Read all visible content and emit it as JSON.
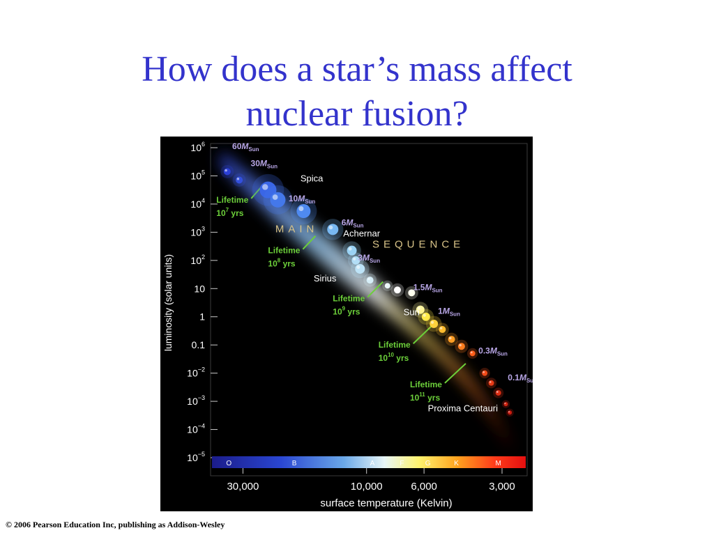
{
  "slide": {
    "title_line1": "How does a star’s mass affect",
    "title_line2": "nuclear fusion?",
    "copyright": "© 2006 Pearson Education Inc, publishing as Addison-Wesley"
  },
  "colors": {
    "title": "#3333cc",
    "lifetime_text": "#6ccf3a",
    "mass_text": "#b8a6e6",
    "sequence_text": "#d9c489",
    "background": "#000000"
  },
  "chart_data": {
    "type": "scatter",
    "xlabel": "surface temperature (Kelvin)",
    "ylabel": "luminosity (solar units)",
    "x_scale": "log-reversed",
    "xlim": [
      40000,
      2400
    ],
    "ylim_log10": [
      -5,
      6
    ],
    "x_ticks": [
      {
        "value": 30000,
        "label": "30,000"
      },
      {
        "value": 10000,
        "label": "10,000"
      },
      {
        "value": 6000,
        "label": "6,000"
      },
      {
        "value": 3000,
        "label": "3,000"
      }
    ],
    "y_ticks": [
      {
        "log": 6,
        "base": "10",
        "exp": "6"
      },
      {
        "log": 5,
        "base": "10",
        "exp": "5"
      },
      {
        "log": 4,
        "base": "10",
        "exp": "4"
      },
      {
        "log": 3,
        "base": "10",
        "exp": "3"
      },
      {
        "log": 2,
        "base": "10",
        "exp": "2"
      },
      {
        "log": 1,
        "base": "10",
        "exp": ""
      },
      {
        "log": 0,
        "base": "1",
        "exp": ""
      },
      {
        "log": -1,
        "base": "0.1",
        "exp": ""
      },
      {
        "log": -2,
        "base": "10",
        "exp": "−2"
      },
      {
        "log": -3,
        "base": "10",
        "exp": "−3"
      },
      {
        "log": -4,
        "base": "10",
        "exp": "−4"
      },
      {
        "log": -5,
        "base": "10",
        "exp": "−5"
      }
    ],
    "spectral_classes": [
      {
        "label": "O",
        "temp": 34000
      },
      {
        "label": "B",
        "temp": 19000
      },
      {
        "label": "A",
        "temp": 9500
      },
      {
        "label": "F",
        "temp": 7300
      },
      {
        "label": "G",
        "temp": 5800
      },
      {
        "label": "K",
        "temp": 4500
      },
      {
        "label": "M",
        "temp": 3100
      }
    ],
    "stars": [
      {
        "temp": 34500,
        "log_lum": 5.15,
        "r": 5,
        "color": "#2b3fd6"
      },
      {
        "temp": 31000,
        "log_lum": 4.85,
        "r": 5,
        "color": "#3350dd"
      },
      {
        "temp": 24000,
        "log_lum": 4.5,
        "r": 12,
        "color": "#3a66e6"
      },
      {
        "temp": 22000,
        "log_lum": 4.15,
        "r": 11,
        "color": "#4478ea"
      },
      {
        "temp": 17500,
        "log_lum": 3.75,
        "r": 10,
        "color": "#4f8af0"
      },
      {
        "temp": 13500,
        "log_lum": 3.1,
        "r": 8,
        "color": "#78b8f2"
      },
      {
        "temp": 11400,
        "log_lum": 2.35,
        "r": 7,
        "color": "#9ad2f4"
      },
      {
        "temp": 11000,
        "log_lum": 2.0,
        "r": 6,
        "color": "#b0dcf6"
      },
      {
        "temp": 10600,
        "log_lum": 1.7,
        "r": 7,
        "color": "#bde3f7"
      },
      {
        "temp": 9700,
        "log_lum": 1.3,
        "r": 5,
        "color": "#d6eef8"
      },
      {
        "temp": 8300,
        "log_lum": 1.1,
        "r": 4,
        "color": "#eaf6f9"
      },
      {
        "temp": 7600,
        "log_lum": 0.95,
        "r": 5,
        "color": "#ffffff"
      },
      {
        "temp": 6700,
        "log_lum": 0.85,
        "r": 5,
        "color": "#ffffee"
      },
      {
        "temp": 6200,
        "log_lum": 0.25,
        "r": 6,
        "color": "#fff6a0"
      },
      {
        "temp": 5900,
        "log_lum": 0.0,
        "r": 6,
        "color": "#ffea4a"
      },
      {
        "temp": 5500,
        "log_lum": -0.25,
        "r": 6,
        "color": "#ffd23c"
      },
      {
        "temp": 5100,
        "log_lum": -0.45,
        "r": 5,
        "color": "#ffbc2e"
      },
      {
        "temp": 4700,
        "log_lum": -0.8,
        "r": 5,
        "color": "#ff9d24"
      },
      {
        "temp": 4300,
        "log_lum": -1.05,
        "r": 5,
        "color": "#ff7d1e"
      },
      {
        "temp": 3900,
        "log_lum": -1.3,
        "r": 4,
        "color": "#ff5e1a"
      },
      {
        "temp": 3500,
        "log_lum": -2.0,
        "r": 4,
        "color": "#f24a18"
      },
      {
        "temp": 3300,
        "log_lum": -2.35,
        "r": 4,
        "color": "#e63a16"
      },
      {
        "temp": 3100,
        "log_lum": -2.7,
        "r": 4,
        "color": "#dd2e14"
      },
      {
        "temp": 2900,
        "log_lum": -3.1,
        "r": 3,
        "color": "#d22412"
      },
      {
        "temp": 2800,
        "log_lum": -3.4,
        "r": 3,
        "color": "#c81c10"
      }
    ],
    "annotations": {
      "mass_labels": [
        {
          "value": "60",
          "unit": "M",
          "sub": "Sun",
          "temp": 33000,
          "log_lum": 5.95
        },
        {
          "value": "30",
          "unit": "M",
          "sub": "Sun",
          "temp": 28000,
          "log_lum": 5.35
        },
        {
          "value": "10",
          "unit": "M",
          "sub": "Sun",
          "temp": 20000,
          "log_lum": 4.1
        },
        {
          "value": "6",
          "unit": "M",
          "sub": "Sun",
          "temp": 12500,
          "log_lum": 3.25
        },
        {
          "value": "3",
          "unit": "M",
          "sub": "Sun",
          "temp": 10800,
          "log_lum": 2.0
        },
        {
          "value": "1.5",
          "unit": "M",
          "sub": "Sun",
          "temp": 6600,
          "log_lum": 0.95
        },
        {
          "value": "1",
          "unit": "M",
          "sub": "Sun",
          "temp": 5300,
          "log_lum": 0.1
        },
        {
          "value": "0.3",
          "unit": "M",
          "sub": "Sun",
          "temp": 3700,
          "log_lum": -1.3
        },
        {
          "value": "0.1",
          "unit": "M",
          "sub": "Sun",
          "temp": 2850,
          "log_lum": -2.25
        }
      ],
      "star_names": [
        {
          "label": "Spica",
          "temp": 18000,
          "log_lum": 4.8
        },
        {
          "label": "Achernar",
          "temp": 12300,
          "log_lum": 2.85
        },
        {
          "label": "Sirius",
          "temp": 16000,
          "log_lum": 1.25
        },
        {
          "label": "Sun",
          "temp": 7200,
          "log_lum": 0.05
        },
        {
          "label": "Proxima Centauri",
          "temp": 5800,
          "log_lum": -3.35
        }
      ],
      "lifetimes": [
        {
          "title": "Lifetime",
          "base": "10",
          "exp": "7",
          "unit": "yrs",
          "temp": 38000,
          "log_lum": 4.05
        },
        {
          "title": "Lifetime",
          "base": "10",
          "exp": "8",
          "unit": "yrs",
          "temp": 24000,
          "log_lum": 2.25
        },
        {
          "title": "Lifetime",
          "base": "10",
          "exp": "9",
          "unit": "yrs",
          "temp": 13500,
          "log_lum": 0.55
        },
        {
          "title": "Lifetime",
          "base": "10",
          "exp": "10",
          "unit": "yrs",
          "temp": 9000,
          "log_lum": -1.1
        },
        {
          "title": "Lifetime",
          "base": "10",
          "exp": "11",
          "unit": "yrs",
          "temp": 6800,
          "log_lum": -2.5
        }
      ],
      "sequence_words": [
        {
          "label": "MAIN",
          "temp": 22500,
          "log_lum": 3.0
        },
        {
          "label": "SEQUENCE",
          "temp": 9500,
          "log_lum": 2.45
        }
      ]
    }
  }
}
